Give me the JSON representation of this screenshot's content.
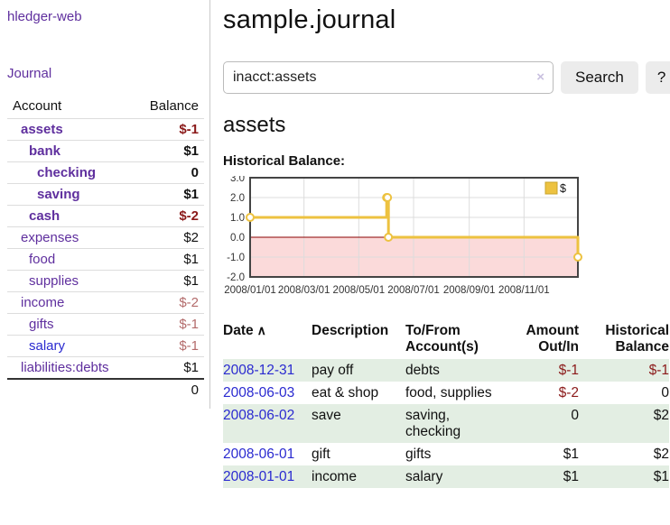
{
  "colors": {
    "purple": "#5f2f9e",
    "blue": "#2a2ad0",
    "negstrong": "#8b1a1a",
    "negweak": "#b36b6b",
    "green": "#e3eee3"
  },
  "sidebar": {
    "app_title": "hledger-web",
    "journal_label": "Journal",
    "accounts_table": {
      "headers": {
        "account": "Account",
        "balance": "Balance"
      },
      "rows": [
        {
          "name": "assets",
          "depth": 1,
          "bold": true,
          "balance": "$-1",
          "negative": "strong"
        },
        {
          "name": "bank",
          "depth": 2,
          "bold": true,
          "balance": "$1"
        },
        {
          "name": "checking",
          "depth": 3,
          "bold": true,
          "balance": "0"
        },
        {
          "name": "saving",
          "depth": 3,
          "bold": true,
          "balance": "$1"
        },
        {
          "name": "cash",
          "depth": 2,
          "bold": true,
          "balance": "$-2",
          "negative": "strong"
        },
        {
          "name": "expenses",
          "depth": 1,
          "bold": false,
          "balance": "$2"
        },
        {
          "name": "food",
          "depth": 2,
          "bold": false,
          "balance": "$1"
        },
        {
          "name": "supplies",
          "depth": 2,
          "bold": false,
          "balance": "$1"
        },
        {
          "name": "income",
          "depth": 1,
          "bold": false,
          "balance": "$-2",
          "negative": "weak"
        },
        {
          "name": "gifts",
          "depth": 2,
          "bold": false,
          "balance": "$-1",
          "negative": "weak"
        },
        {
          "name": "salary",
          "depth": 2,
          "bold": false,
          "balance": "$-1",
          "negative": "weak",
          "link": "blue"
        },
        {
          "name": "liabilities:debts",
          "depth": 1,
          "bold": false,
          "balance": "$1"
        }
      ],
      "total": "0"
    }
  },
  "main": {
    "title": "sample.journal",
    "search": {
      "value": "inacct:assets",
      "clear_icon": "×",
      "search_label": "Search",
      "help_label": "?"
    },
    "account_heading": "assets",
    "chart_label": "Historical Balance:"
  },
  "chart_data": {
    "type": "line",
    "step": true,
    "title": "Historical Balance",
    "series": [
      {
        "name": "$",
        "points": [
          [
            "2008-01-01",
            1
          ],
          [
            "2008-06-01",
            2
          ],
          [
            "2008-06-02",
            2
          ],
          [
            "2008-06-03",
            0
          ],
          [
            "2008-12-31",
            -1
          ]
        ]
      }
    ],
    "xlim": [
      "2008-01-01",
      "2008-12-31"
    ],
    "ylim": [
      -2,
      3
    ],
    "y_ticks": [
      -2,
      -1,
      0,
      1,
      2,
      3
    ],
    "x_tick_dates": [
      "2008-01-01",
      "2008-03-01",
      "2008-05-01",
      "2008-07-01",
      "2008-09-01",
      "2008-11-01"
    ],
    "x_tick_labels": [
      "2008/01/01",
      "2008/03/01",
      "2008/05/01",
      "2008/07/01",
      "2008/09/01",
      "2008/11/01"
    ],
    "legend": {
      "position": "top-right",
      "label": "$"
    },
    "grid": true,
    "colors": {
      "line": "#edc240",
      "marker_fill": "#ffffff",
      "negative_fill": "#fbdada",
      "zero_line": "#8b0000",
      "grid": "#dcdcdc",
      "frame": "#444444",
      "legend_swatch_border": "#c9a42c"
    }
  },
  "register": {
    "headers": {
      "date": "Date",
      "sort_icon": "∧",
      "description": "Description",
      "tofrom_l1": "To/From",
      "tofrom_l2": "Account(s)",
      "amount_l1": "Amount",
      "amount_l2": "Out/In",
      "hist_l1": "Historical",
      "hist_l2": "Balance"
    },
    "rows": [
      {
        "date": "2008-12-31",
        "description": "pay off",
        "accounts": "debts",
        "amount": "$-1",
        "amount_negative": true,
        "balance": "$-1",
        "balance_negative": true
      },
      {
        "date": "2008-06-03",
        "description": "eat & shop",
        "accounts": "food, supplies",
        "amount": "$-2",
        "amount_negative": true,
        "balance": "0",
        "balance_negative": false
      },
      {
        "date": "2008-06-02",
        "description": "save",
        "accounts": "saving,\nchecking",
        "amount": "0",
        "amount_negative": false,
        "balance": "$2",
        "balance_negative": false
      },
      {
        "date": "2008-06-01",
        "description": "gift",
        "accounts": "gifts",
        "amount": "$1",
        "amount_negative": false,
        "balance": "$2",
        "balance_negative": false
      },
      {
        "date": "2008-01-01",
        "description": "income",
        "accounts": "salary",
        "amount": "$1",
        "amount_negative": false,
        "balance": "$1",
        "balance_negative": false
      }
    ]
  }
}
